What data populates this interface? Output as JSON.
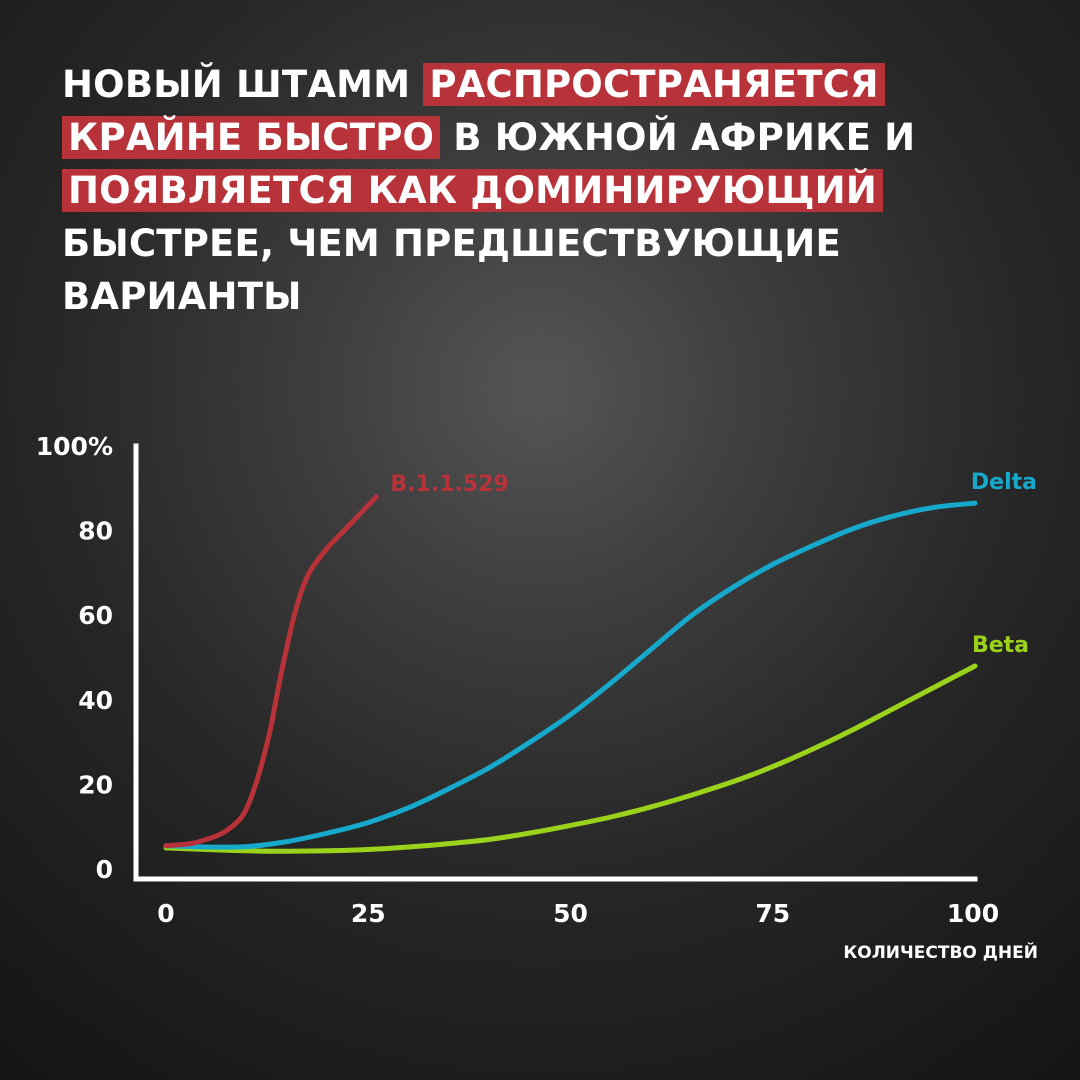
{
  "headline": {
    "parts": [
      {
        "text": "НОВЫЙ ШТАММ ",
        "highlight": false
      },
      {
        "text": "РАСПРОСТРАНЯЕТСЯ КРАЙНЕ БЫСТРО",
        "highlight": true
      },
      {
        "text": " В ЮЖНОЙ АФРИКЕ И ",
        "highlight": false
      },
      {
        "text": "ПОЯВЛЯЕТСЯ КАК ДОМИНИРУЮЩИЙ",
        "highlight": true
      },
      {
        "text": " БЫСТРЕЕ, ЧЕМ ПРЕДШЕСТВУЮЩИЕ ВАРИАНТЫ",
        "highlight": false
      }
    ]
  },
  "colors": {
    "highlight": "#b8323a",
    "axis": "#ffffff"
  },
  "chart_data": {
    "type": "line",
    "xlabel": "КОЛИЧЕСТВО ДНЕЙ",
    "ylabel": "",
    "xlim": [
      0,
      100
    ],
    "ylim": [
      0,
      100
    ],
    "x_ticks": [
      {
        "value": 0,
        "label": "0"
      },
      {
        "value": 25,
        "label": "25"
      },
      {
        "value": 50,
        "label": "50"
      },
      {
        "value": 75,
        "label": "75"
      },
      {
        "value": 100,
        "label": "100"
      }
    ],
    "y_ticks": [
      {
        "value": 0,
        "label": "0"
      },
      {
        "value": 20,
        "label": "20"
      },
      {
        "value": 40,
        "label": "40"
      },
      {
        "value": 60,
        "label": "60"
      },
      {
        "value": 80,
        "label": "80"
      },
      {
        "value": 100,
        "label": "100%"
      }
    ],
    "grid": false,
    "legend": "none",
    "series": [
      {
        "name": "B.1.1.529",
        "color": "#b8323a",
        "points": [
          [
            0,
            5.5
          ],
          [
            3,
            6
          ],
          [
            5,
            7
          ],
          [
            7,
            8.5
          ],
          [
            9,
            11.5
          ],
          [
            10,
            14.5
          ],
          [
            11,
            19.5
          ],
          [
            12,
            26
          ],
          [
            13,
            34
          ],
          [
            14,
            44
          ],
          [
            15,
            53
          ],
          [
            16,
            61
          ],
          [
            17,
            67
          ],
          [
            18,
            71
          ],
          [
            20,
            76
          ],
          [
            22,
            80
          ],
          [
            24,
            84
          ],
          [
            25,
            86
          ],
          [
            26,
            88
          ]
        ]
      },
      {
        "name": "Delta",
        "color": "#17a9cc",
        "points": [
          [
            0,
            5.5
          ],
          [
            5,
            5.2
          ],
          [
            10,
            5.3
          ],
          [
            15,
            6.5
          ],
          [
            20,
            8.5
          ],
          [
            25,
            11
          ],
          [
            30,
            14.5
          ],
          [
            35,
            19
          ],
          [
            40,
            24
          ],
          [
            45,
            30
          ],
          [
            50,
            36.5
          ],
          [
            55,
            44
          ],
          [
            60,
            52
          ],
          [
            65,
            60
          ],
          [
            70,
            66.5
          ],
          [
            75,
            72
          ],
          [
            80,
            76.5
          ],
          [
            85,
            80.5
          ],
          [
            90,
            83.5
          ],
          [
            95,
            85.5
          ],
          [
            100,
            86.5
          ]
        ]
      },
      {
        "name": "Beta",
        "color": "#9bd21c",
        "points": [
          [
            0,
            5
          ],
          [
            5,
            4.6
          ],
          [
            10,
            4.3
          ],
          [
            15,
            4.2
          ],
          [
            20,
            4.3
          ],
          [
            25,
            4.6
          ],
          [
            30,
            5.2
          ],
          [
            35,
            6
          ],
          [
            40,
            7
          ],
          [
            45,
            8.5
          ],
          [
            50,
            10.3
          ],
          [
            55,
            12.3
          ],
          [
            60,
            14.7
          ],
          [
            65,
            17.5
          ],
          [
            70,
            20.6
          ],
          [
            75,
            24.2
          ],
          [
            80,
            28.4
          ],
          [
            85,
            33
          ],
          [
            90,
            38
          ],
          [
            95,
            43
          ],
          [
            100,
            48
          ]
        ]
      }
    ]
  }
}
